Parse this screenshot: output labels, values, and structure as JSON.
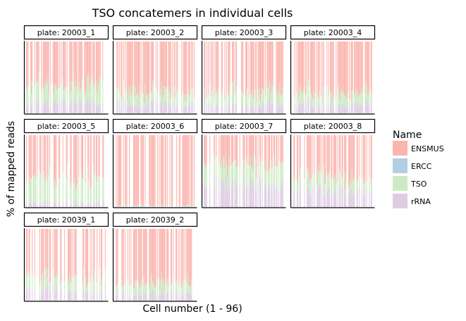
{
  "chart_data": {
    "type": "bar",
    "subtype": "stacked-100-percent-faceted",
    "title": "TSO concatemers in individual cells",
    "xlabel": "Cell number (1 - 96)",
    "ylabel": "% of mapped reads",
    "ylim": [
      0,
      100
    ],
    "cells_per_plate": 96,
    "legend": {
      "title": "Name",
      "position": "right",
      "entries": [
        {
          "name": "ENSMUS",
          "color": "#fbb4ae"
        },
        {
          "name": "ERCC",
          "color": "#b3cde3"
        },
        {
          "name": "TSO",
          "color": "#ccebc5"
        },
        {
          "name": "rRNA",
          "color": "#decbe4"
        }
      ]
    },
    "facets": [
      {
        "label": "plate: 20003_1",
        "approx_mean_percent": {
          "ENSMUS": 62,
          "ERCC": 0,
          "TSO": 24,
          "rRNA": 14
        },
        "empty_fraction": 0.35
      },
      {
        "label": "plate: 20003_2",
        "approx_mean_percent": {
          "ENSMUS": 72,
          "ERCC": 0,
          "TSO": 16,
          "rRNA": 12
        },
        "empty_fraction": 0.3
      },
      {
        "label": "plate: 20003_3",
        "approx_mean_percent": {
          "ENSMUS": 70,
          "ERCC": 0,
          "TSO": 19,
          "rRNA": 11
        },
        "empty_fraction": 0.3
      },
      {
        "label": "plate: 20003_4",
        "approx_mean_percent": {
          "ENSMUS": 72,
          "ERCC": 0,
          "TSO": 16,
          "rRNA": 12
        },
        "empty_fraction": 0.3
      },
      {
        "label": "plate: 20003_5",
        "approx_mean_percent": {
          "ENSMUS": 60,
          "ERCC": 0,
          "TSO": 34,
          "rRNA": 6
        },
        "empty_fraction": 0.45
      },
      {
        "label": "plate: 20003_6",
        "approx_mean_percent": {
          "ENSMUS": 98,
          "ERCC": 0,
          "TSO": 1,
          "rRNA": 1
        },
        "empty_fraction": 0.35
      },
      {
        "label": "plate: 20003_7",
        "approx_mean_percent": {
          "ENSMUS": 40,
          "ERCC": 0,
          "TSO": 28,
          "rRNA": 32
        },
        "empty_fraction": 0.3
      },
      {
        "label": "plate: 20003_8",
        "approx_mean_percent": {
          "ENSMUS": 60,
          "ERCC": 0,
          "TSO": 18,
          "rRNA": 22
        },
        "empty_fraction": 0.4
      },
      {
        "label": "plate: 20039_1",
        "approx_mean_percent": {
          "ENSMUS": 67,
          "ERCC": 0,
          "TSO": 18,
          "rRNA": 15
        },
        "empty_fraction": 0.45
      },
      {
        "label": "plate: 20039_2",
        "approx_mean_percent": {
          "ENSMUS": 76,
          "ERCC": 0,
          "TSO": 15,
          "rRNA": 9
        },
        "empty_fraction": 0.35
      }
    ]
  }
}
